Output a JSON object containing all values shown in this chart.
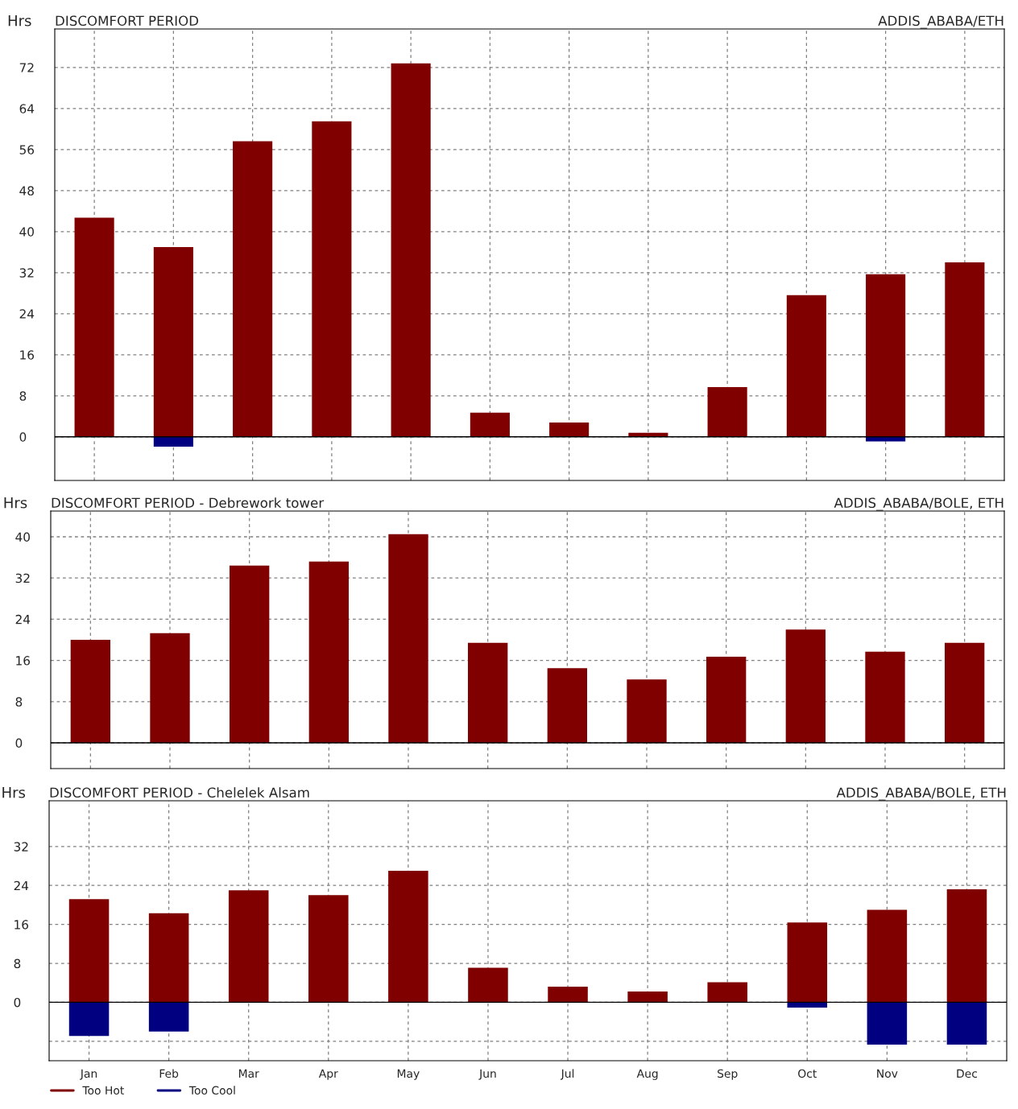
{
  "chart_data": [
    {
      "type": "bar",
      "title": "DISCOMFORT PERIOD",
      "subtitle": "ADDIS_ABABA/ETH",
      "ylabel": "Hrs",
      "categories": [
        null,
        null,
        null,
        null,
        null,
        null,
        null,
        null,
        null,
        null,
        null,
        null
      ],
      "series": [
        {
          "color": "#800000",
          "values": [
            42.7,
            37,
            57.6,
            61.5,
            72.8,
            4.7,
            2.8,
            0.8,
            9.7,
            27.6,
            31.7,
            34
          ]
        },
        {
          "color": "#000080",
          "values": [
            null,
            -1.9,
            null,
            null,
            null,
            null,
            null,
            null,
            null,
            null,
            -0.9,
            null
          ]
        }
      ],
      "ylim": [
        -8.5,
        79.5
      ],
      "yticks": [
        0,
        8,
        16,
        24,
        32,
        40,
        48,
        56,
        64,
        72
      ],
      "grid": true,
      "tick_labels": "y"
    },
    {
      "type": "bar",
      "title": "DISCOMFORT PERIOD - Debrework tower",
      "subtitle": "ADDIS_ABABA/BOLE, ETH",
      "ylabel": "Hrs",
      "categories": [
        null,
        null,
        null,
        null,
        null,
        null,
        null,
        null,
        null,
        null,
        null,
        null
      ],
      "series": [
        {
          "color": "#800000",
          "values": [
            20,
            21.3,
            34.4,
            35.2,
            40.5,
            19.4,
            14.5,
            12.3,
            16.7,
            22,
            17.7,
            19.4
          ]
        }
      ],
      "ylim": [
        -5,
        45
      ],
      "yticks": [
        0,
        8,
        16,
        24,
        32,
        40
      ],
      "grid": true,
      "tick_labels": "y"
    },
    {
      "type": "bar",
      "title": "DISCOMFORT PERIOD - Chelelek Alsam",
      "subtitle": "ADDIS_ABABA/BOLE, ETH",
      "ylabel": "Hrs",
      "categories": [
        "Jan",
        "Feb",
        "Mar",
        "Apr",
        "May",
        "Jun",
        "Jul",
        "Aug",
        "Sep",
        "Oct",
        "Nov",
        "Dec"
      ],
      "series": [
        {
          "name": "Too Hot",
          "color": "#800000",
          "values": [
            21.2,
            18.3,
            23,
            22,
            27,
            7.1,
            3.2,
            2.2,
            4.1,
            16.4,
            19,
            23.2
          ]
        },
        {
          "name": "Too Cool",
          "color": "#000080",
          "values": [
            -6.9,
            -6,
            null,
            null,
            null,
            null,
            null,
            null,
            null,
            -1.1,
            -8.7,
            -8.7
          ]
        }
      ],
      "ylim": [
        -12,
        41.4
      ],
      "yticks": [
        {
          "value": -8,
          "label": null
        },
        0,
        8,
        16,
        24,
        32
      ],
      "grid": true,
      "legend": "bottom left"
    }
  ]
}
